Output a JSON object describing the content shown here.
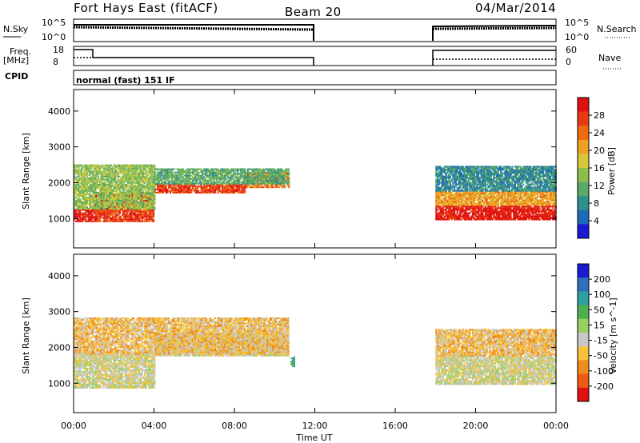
{
  "header": {
    "title": "Fort Hays East (fitACF)",
    "beam": "Beam 20",
    "date": "04/Mar/2014"
  },
  "param_panels": {
    "nsky_label": "N.Sky",
    "nsearch_label": "N.Search",
    "nsky_ticks": [
      "10^5",
      "10^0"
    ],
    "nsearch_ticks": [
      "10^5",
      "10^0"
    ],
    "freq_label": "Freq.",
    "freq_unit": "[MHz]",
    "freq_ticks": [
      "18",
      "8"
    ],
    "nave_label": "Nave",
    "nave_ticks": [
      "60",
      "0"
    ],
    "cpid_label": "CPID",
    "cpid_text": "normal (fast) 151 IF"
  },
  "colors": {
    "power": [
      "#1a1ad2",
      "#1f6ab8",
      "#2f8f8a",
      "#5aa86a",
      "#8cc04a",
      "#d7c63c",
      "#f0a020",
      "#f06a12",
      "#e83a10",
      "#e01010"
    ],
    "velocity": [
      "#1a1ad2",
      "#2f6fbf",
      "#2fa0a0",
      "#4fb04f",
      "#9ad060",
      "#c8c8c8",
      "#f5c23a",
      "#f08c1a",
      "#ee5a12",
      "#e01010"
    ]
  },
  "chart_data": [
    {
      "type": "heatmap",
      "name": "Power",
      "ylabel": "Slant Range [km]",
      "colorbar_label": "Power [dB]",
      "colorbar_ticks": [
        "4",
        "8",
        "12",
        "16",
        "20",
        "24",
        "28"
      ],
      "xlim": [
        0,
        24
      ],
      "ylim": [
        180,
        4600
      ],
      "yticks": [
        1000,
        2000,
        3000,
        4000
      ],
      "data_gap_hours": [
        12.0,
        18.0
      ],
      "regions": [
        {
          "t0": 0.0,
          "t1": 1.0,
          "r0": 900,
          "r1": 1250,
          "level": 9
        },
        {
          "t0": 1.0,
          "t1": 4.0,
          "r0": 900,
          "r1": 1700,
          "level": 8
        },
        {
          "t0": 4.0,
          "t1": 8.5,
          "r0": 1700,
          "r1": 1950,
          "level": 8
        },
        {
          "t0": 8.5,
          "t1": 10.7,
          "r0": 1850,
          "r1": 2300,
          "level": 7
        },
        {
          "t0": 0.0,
          "t1": 4.0,
          "r0": 1250,
          "r1": 2500,
          "level": 4
        },
        {
          "t0": 4.0,
          "t1": 10.7,
          "r0": 1950,
          "r1": 2400,
          "level": 3
        },
        {
          "t0": 18.0,
          "t1": 24.0,
          "r0": 950,
          "r1": 1350,
          "level": 9
        },
        {
          "t0": 18.0,
          "t1": 24.0,
          "r0": 1350,
          "r1": 1750,
          "level": 6
        },
        {
          "t0": 18.0,
          "t1": 24.0,
          "r0": 1750,
          "r1": 2450,
          "level": 2
        }
      ]
    },
    {
      "type": "heatmap",
      "name": "Velocity",
      "ylabel": "Slant Range [km]",
      "colorbar_label": "Velocity [m s^-1]",
      "colorbar_ticks": [
        "200",
        "100",
        "50",
        "15",
        "-15",
        "-50",
        "-100",
        "-200"
      ],
      "xlim": [
        0,
        24
      ],
      "ylim": [
        180,
        4600
      ],
      "yticks": [
        1000,
        2000,
        3000,
        4000
      ],
      "xticks": [
        "00:00",
        "04:00",
        "08:00",
        "12:00",
        "16:00",
        "20:00",
        "00:00"
      ],
      "xlabel": "Time UT",
      "data_gap_hours": [
        12.0,
        18.0
      ],
      "regions": [
        {
          "t0": 0.0,
          "t1": 4.0,
          "r0": 850,
          "r1": 1800,
          "level": 5
        },
        {
          "t0": 4.0,
          "t1": 10.7,
          "r0": 1750,
          "r1": 2400,
          "level": 5
        },
        {
          "t0": 0.0,
          "t1": 10.7,
          "r0": 1800,
          "r1": 2800,
          "level": 6
        },
        {
          "t0": 10.8,
          "t1": 11.0,
          "r0": 1450,
          "r1": 1750,
          "level": 3
        },
        {
          "t0": 18.0,
          "t1": 24.0,
          "r0": 950,
          "r1": 1750,
          "level": 5
        },
        {
          "t0": 18.0,
          "t1": 24.0,
          "r0": 1750,
          "r1": 2500,
          "level": 6
        }
      ]
    }
  ]
}
